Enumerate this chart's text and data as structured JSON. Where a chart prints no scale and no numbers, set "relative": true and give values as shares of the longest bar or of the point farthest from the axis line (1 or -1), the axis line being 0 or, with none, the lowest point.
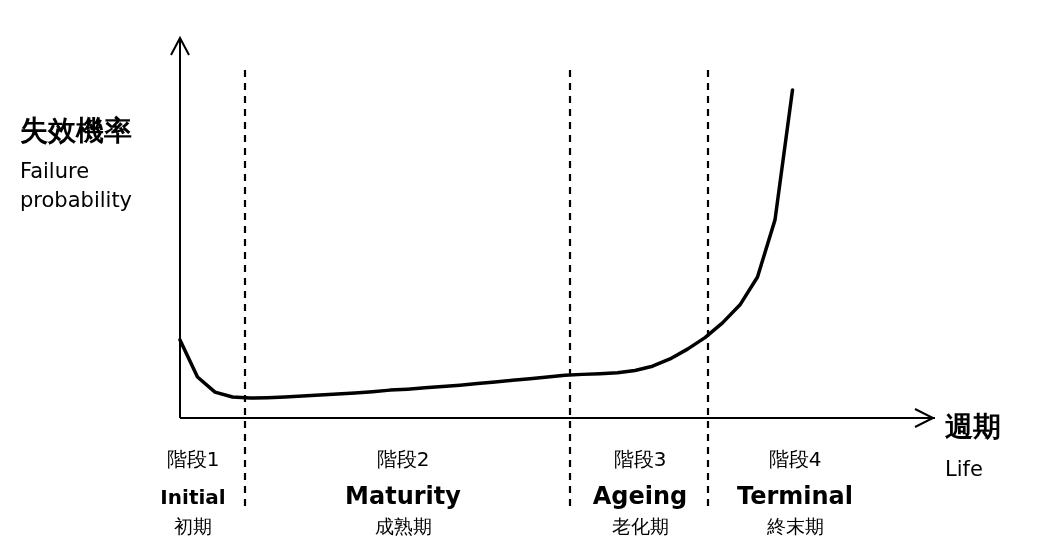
{
  "chart_data": {
    "type": "line",
    "relative": true,
    "categories": [
      null,
      null,
      null,
      null,
      null,
      null,
      null,
      null,
      null,
      null,
      null,
      null,
      null,
      null,
      null,
      null,
      null,
      null,
      null,
      null,
      null,
      null,
      null,
      null,
      null,
      null,
      null,
      null,
      null,
      null,
      null,
      null,
      null,
      null,
      null,
      null
    ],
    "series": [
      {
        "color": "#000000",
        "values": [
          0.238,
          0.125,
          0.079,
          0.064,
          0.061,
          0.062,
          0.064,
          0.067,
          0.07,
          0.073,
          0.076,
          0.08,
          0.085,
          0.088,
          0.092,
          0.096,
          0.1,
          0.105,
          0.11,
          0.115,
          0.12,
          0.125,
          0.13,
          0.133,
          0.135,
          0.138,
          0.145,
          0.158,
          0.18,
          0.21,
          0.245,
          0.29,
          0.345,
          0.43,
          0.604,
          1.0
        ]
      }
    ],
    "ylabel": "失效機率\nFailure\nprobability",
    "annotations": [
      "階段1\nInitial\n初期",
      "階段2\nMaturity\n成熟期",
      "階段3\nAgeing\n老化期",
      "階段4\nTerminal\n終末期",
      "週期\nLife"
    ],
    "marker": "none",
    "line_style": "solid"
  }
}
